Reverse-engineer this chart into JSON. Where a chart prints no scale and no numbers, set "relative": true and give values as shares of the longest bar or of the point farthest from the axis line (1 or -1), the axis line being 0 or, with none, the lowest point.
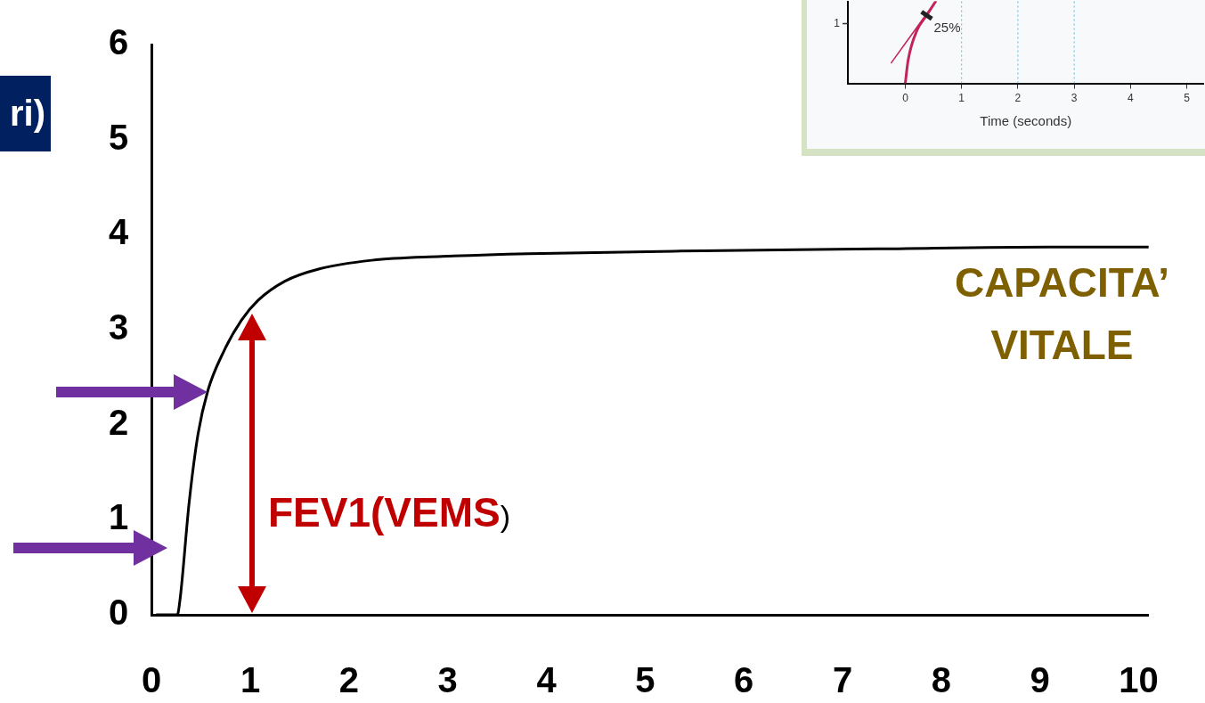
{
  "chart_data": [
    {
      "type": "line",
      "xlim": [
        0,
        10.1
      ],
      "ylim": [
        0,
        6
      ],
      "xticks": [
        0,
        1,
        2,
        3,
        4,
        5,
        6,
        7,
        8,
        9,
        10
      ],
      "yticks": [
        0,
        1,
        2,
        3,
        4,
        5,
        6
      ],
      "grid": false,
      "legend": false,
      "series": [
        {
          "color": "#000000",
          "x": [
            0.05,
            0.26,
            0.29,
            0.38,
            0.47,
            0.57,
            0.73,
            0.91,
            1.08,
            1.35,
            1.7,
            2.23,
            2.94,
            3.82,
            5.58,
            7.35,
            9.11,
            10.1
          ],
          "values": [
            0,
            0,
            0.18,
            1.18,
            1.9,
            2.36,
            2.77,
            3.1,
            3.31,
            3.51,
            3.64,
            3.73,
            3.77,
            3.8,
            3.83,
            3.85,
            3.87,
            3.87
          ]
        }
      ],
      "annotations": [
        "ri)",
        "CAPACITA’\nVITALE",
        "FEV1(VEMS)"
      ]
    },
    {
      "type": "line",
      "relative": true,
      "xlim": [
        -1.02,
        5.3
      ],
      "xticks": [
        0,
        1,
        2,
        3,
        4,
        5
      ],
      "xlabel": "Time (seconds)",
      "grid": false,
      "legend": false,
      "series": [
        {
          "color": "#c0245a",
          "x": [
            0,
            0.05,
            0.21,
            0.38,
            0.54
          ],
          "values": [
            0,
            0.28,
            0.65,
            0.83,
            1
          ]
        },
        {
          "color": "#c0245a",
          "x": [
            -0.25,
            0.54
          ],
          "values": [
            0.25,
            1
          ]
        }
      ],
      "ref_lines": [
        {
          "axis": "x",
          "value": 1,
          "color": "#5bb4e5",
          "line_style": "dotted"
        },
        {
          "axis": "x",
          "value": 2,
          "color": "#5bb4e5",
          "line_style": "dotted"
        },
        {
          "axis": "x",
          "value": 3,
          "color": "#5bb4e5",
          "line_style": "dotted"
        }
      ],
      "annotations": [
        {
          "text": "25%",
          "x": 0.38,
          "y": 0.83
        },
        "1"
      ]
    }
  ]
}
